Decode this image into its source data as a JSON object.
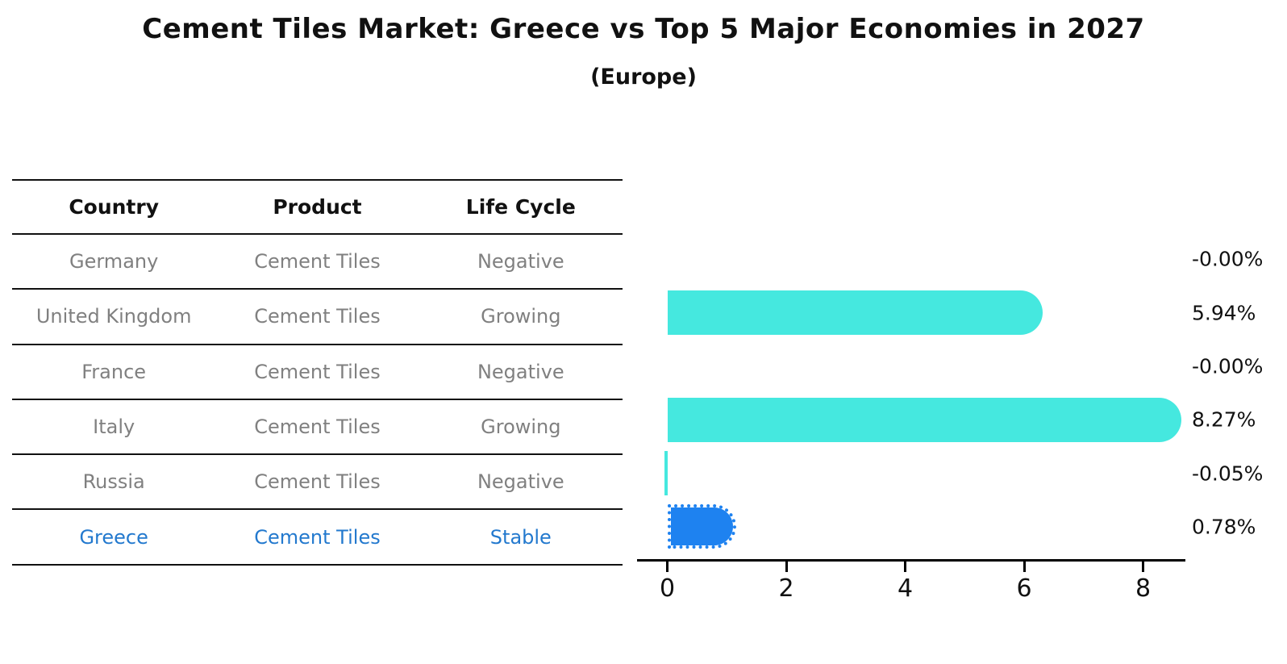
{
  "title": "Cement Tiles Market: Greece vs Top 5 Major Economies in 2027",
  "subtitle": "(Europe)",
  "table": {
    "headers": [
      "Country",
      "Product",
      "Life Cycle"
    ],
    "rows": [
      {
        "country": "Germany",
        "product": "Cement Tiles",
        "life_cycle": "Negative",
        "value_label": "-0.00%"
      },
      {
        "country": "United Kingdom",
        "product": "Cement Tiles",
        "life_cycle": "Growing",
        "value_label": "5.94%"
      },
      {
        "country": "France",
        "product": "Cement Tiles",
        "life_cycle": "Negative",
        "value_label": "-0.00%"
      },
      {
        "country": "Italy",
        "product": "Cement Tiles",
        "life_cycle": "Growing",
        "value_label": "8.27%"
      },
      {
        "country": "Russia",
        "product": "Cement Tiles",
        "life_cycle": "Negative",
        "value_label": "-0.05%"
      },
      {
        "country": "Greece",
        "product": "Cement Tiles",
        "life_cycle": "Stable",
        "value_label": "0.78%"
      }
    ]
  },
  "chart_data": {
    "type": "bar",
    "orientation": "horizontal",
    "title": "Cement Tiles Market: Greece vs Top 5 Major Economies in 2027",
    "subtitle": "(Europe)",
    "categories": [
      "Germany",
      "United Kingdom",
      "France",
      "Italy",
      "Russia",
      "Greece"
    ],
    "values": [
      -0.0,
      5.94,
      -0.0,
      8.27,
      -0.05,
      0.78
    ],
    "value_labels": [
      "-0.00%",
      "5.94%",
      "-0.00%",
      "8.27%",
      "-0.05%",
      "0.78%"
    ],
    "unit": "%",
    "xlabel": "",
    "ylabel": "",
    "xticks": [
      0,
      2,
      4,
      6,
      8
    ],
    "xlim": [
      -0.5,
      8.7
    ],
    "grid": false,
    "legend": false,
    "bar_color": "#45E8DF",
    "highlight_color": "#1E82F0",
    "highlight_index": 5,
    "highlight_category": "Greece"
  },
  "colors": {
    "background": "#FFFFFF",
    "bar_cyan": "#45E8DF",
    "bar_blue": "#1E82F0",
    "link_blue": "#2379CE",
    "row_text": "#808080",
    "header_text": "#111111",
    "line": "#111111",
    "axis": "#000000"
  }
}
